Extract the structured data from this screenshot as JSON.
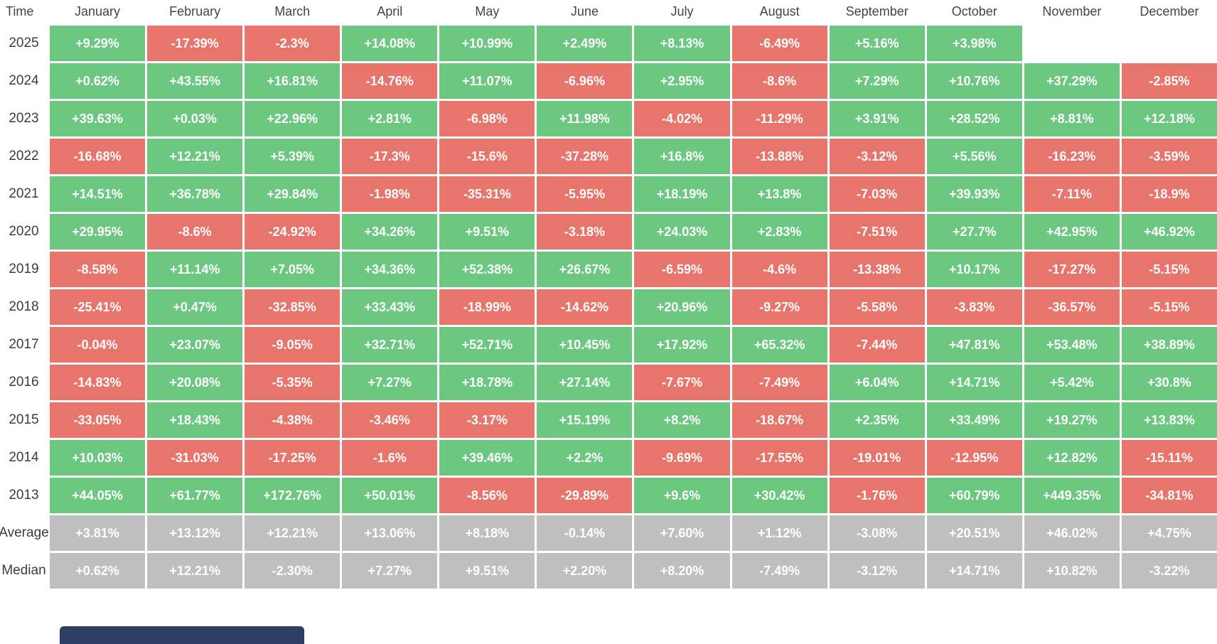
{
  "chart_data": {
    "type": "heatmap",
    "corner_label": "Time",
    "columns": [
      "January",
      "February",
      "March",
      "April",
      "May",
      "June",
      "July",
      "August",
      "September",
      "October",
      "November",
      "December"
    ],
    "rows": [
      {
        "label": "2025",
        "kind": "year",
        "values": [
          "+9.29%",
          "-17.39%",
          "-2.3%",
          "+14.08%",
          "+10.99%",
          "+2.49%",
          "+8.13%",
          "-6.49%",
          "+5.16%",
          "+3.98%",
          "",
          ""
        ]
      },
      {
        "label": "2024",
        "kind": "year",
        "values": [
          "+0.62%",
          "+43.55%",
          "+16.81%",
          "-14.76%",
          "+11.07%",
          "-6.96%",
          "+2.95%",
          "-8.6%",
          "+7.29%",
          "+10.76%",
          "+37.29%",
          "-2.85%"
        ]
      },
      {
        "label": "2023",
        "kind": "year",
        "values": [
          "+39.63%",
          "+0.03%",
          "+22.96%",
          "+2.81%",
          "-6.98%",
          "+11.98%",
          "-4.02%",
          "-11.29%",
          "+3.91%",
          "+28.52%",
          "+8.81%",
          "+12.18%"
        ]
      },
      {
        "label": "2022",
        "kind": "year",
        "values": [
          "-16.68%",
          "+12.21%",
          "+5.39%",
          "-17.3%",
          "-15.6%",
          "-37.28%",
          "+16.8%",
          "-13.88%",
          "-3.12%",
          "+5.56%",
          "-16.23%",
          "-3.59%"
        ]
      },
      {
        "label": "2021",
        "kind": "year",
        "values": [
          "+14.51%",
          "+36.78%",
          "+29.84%",
          "-1.98%",
          "-35.31%",
          "-5.95%",
          "+18.19%",
          "+13.8%",
          "-7.03%",
          "+39.93%",
          "-7.11%",
          "-18.9%"
        ]
      },
      {
        "label": "2020",
        "kind": "year",
        "values": [
          "+29.95%",
          "-8.6%",
          "-24.92%",
          "+34.26%",
          "+9.51%",
          "-3.18%",
          "+24.03%",
          "+2.83%",
          "-7.51%",
          "+27.7%",
          "+42.95%",
          "+46.92%"
        ]
      },
      {
        "label": "2019",
        "kind": "year",
        "values": [
          "-8.58%",
          "+11.14%",
          "+7.05%",
          "+34.36%",
          "+52.38%",
          "+26.67%",
          "-6.59%",
          "-4.6%",
          "-13.38%",
          "+10.17%",
          "-17.27%",
          "-5.15%"
        ]
      },
      {
        "label": "2018",
        "kind": "year",
        "values": [
          "-25.41%",
          "+0.47%",
          "-32.85%",
          "+33.43%",
          "-18.99%",
          "-14.62%",
          "+20.96%",
          "-9.27%",
          "-5.58%",
          "-3.83%",
          "-36.57%",
          "-5.15%"
        ]
      },
      {
        "label": "2017",
        "kind": "year",
        "values": [
          "-0.04%",
          "+23.07%",
          "-9.05%",
          "+32.71%",
          "+52.71%",
          "+10.45%",
          "+17.92%",
          "+65.32%",
          "-7.44%",
          "+47.81%",
          "+53.48%",
          "+38.89%"
        ]
      },
      {
        "label": "2016",
        "kind": "year",
        "values": [
          "-14.83%",
          "+20.08%",
          "-5.35%",
          "+7.27%",
          "+18.78%",
          "+27.14%",
          "-7.67%",
          "-7.49%",
          "+6.04%",
          "+14.71%",
          "+5.42%",
          "+30.8%"
        ]
      },
      {
        "label": "2015",
        "kind": "year",
        "values": [
          "-33.05%",
          "+18.43%",
          "-4.38%",
          "-3.46%",
          "-3.17%",
          "+15.19%",
          "+8.2%",
          "-18.67%",
          "+2.35%",
          "+33.49%",
          "+19.27%",
          "+13.83%"
        ]
      },
      {
        "label": "2014",
        "kind": "year",
        "values": [
          "+10.03%",
          "-31.03%",
          "-17.25%",
          "-1.6%",
          "+39.46%",
          "+2.2%",
          "-9.69%",
          "-17.55%",
          "-19.01%",
          "-12.95%",
          "+12.82%",
          "-15.11%"
        ]
      },
      {
        "label": "2013",
        "kind": "year",
        "values": [
          "+44.05%",
          "+61.77%",
          "+172.76%",
          "+50.01%",
          "-8.56%",
          "-29.89%",
          "+9.6%",
          "+30.42%",
          "-1.76%",
          "+60.79%",
          "+449.35%",
          "-34.81%"
        ]
      },
      {
        "label": "Average",
        "kind": "summary",
        "values": [
          "+3.81%",
          "+13.12%",
          "+12.21%",
          "+13.06%",
          "+8.18%",
          "-0.14%",
          "+7.60%",
          "+1.12%",
          "-3.08%",
          "+20.51%",
          "+46.02%",
          "+4.75%"
        ]
      },
      {
        "label": "Median",
        "kind": "summary",
        "values": [
          "+0.62%",
          "+12.21%",
          "-2.30%",
          "+7.27%",
          "+9.51%",
          "+2.20%",
          "+8.20%",
          "-7.49%",
          "-3.12%",
          "+14.71%",
          "+10.82%",
          "-3.22%"
        ]
      }
    ],
    "colors": {
      "positive": "#6cc780",
      "negative": "#e7756c",
      "summary": "#bfbfbf",
      "cell_text": "#ffffff",
      "header_text": "#3e4454",
      "label_text": "#363c4c",
      "bottom_bar": "#2e3f66"
    }
  }
}
